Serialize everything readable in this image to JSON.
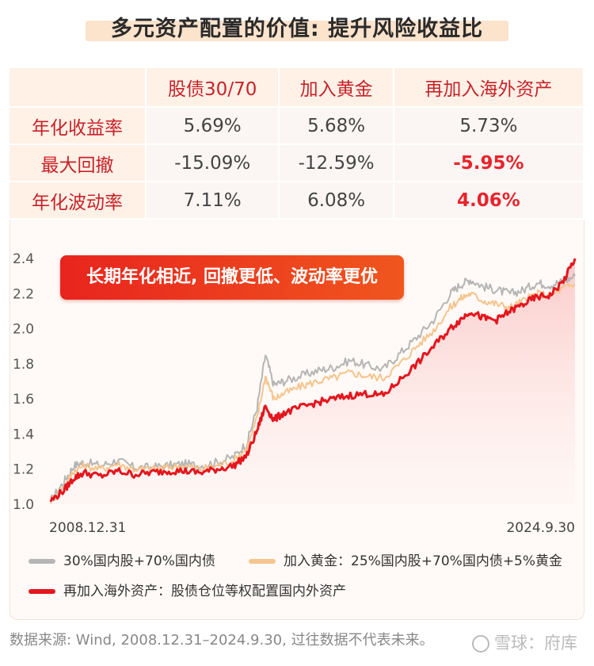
{
  "title": "多元资产配置的价值: 提升风险收益比",
  "table": {
    "headers": [
      "股债30/70",
      "加入黄金",
      "再加入海外资产"
    ],
    "rows": [
      {
        "label": "年化收益率",
        "values": [
          "5.69%",
          "5.68%",
          "5.73%"
        ]
      },
      {
        "label": "最大回撤",
        "values": [
          "-15.09%",
          "-12.59%",
          "-5.95%"
        ]
      },
      {
        "label": "年化波动率",
        "values": [
          "7.11%",
          "6.08%",
          "4.06%"
        ]
      }
    ]
  },
  "badge": "长期年化相近, 回撤更低、波动率更优",
  "legend": {
    "gray": "30%国内股+70%国内债",
    "orange": "加入黄金：25%国内股+70%国内债+5%黄金",
    "red": "再加入海外资产：股债仓位等权配置国内外资产"
  },
  "source": "数据来源: Wind, 2008.12.31–2024.9.30, 过往数据不代表未来。",
  "watermark": "雪球：府库",
  "colors": {
    "gray": "#b5b5b5",
    "orange": "#f6c48d",
    "red": "#e4161e"
  },
  "chart_data": {
    "type": "line",
    "x_labels": [
      "2008.12.31",
      "2024.9.30"
    ],
    "x": [
      2009.0,
      2009.4,
      2009.7,
      2010.0,
      2010.5,
      2011.0,
      2011.5,
      2012.0,
      2012.5,
      2013.0,
      2013.5,
      2014.0,
      2014.5,
      2014.9,
      2015.2,
      2015.45,
      2015.7,
      2016.0,
      2016.5,
      2017.0,
      2017.5,
      2018.0,
      2018.5,
      2019.0,
      2019.5,
      2020.0,
      2020.5,
      2021.0,
      2021.3,
      2021.6,
      2022.0,
      2022.4,
      2022.8,
      2023.2,
      2023.6,
      2024.0,
      2024.4,
      2024.75
    ],
    "ylim": [
      1.0,
      2.4
    ],
    "yticks": [
      1.0,
      1.2,
      1.4,
      1.6,
      1.8,
      2.0,
      2.2,
      2.4
    ],
    "series": [
      {
        "name": "30%国内股+70%国内债",
        "color": "gray",
        "values": [
          1.02,
          1.13,
          1.22,
          1.24,
          1.22,
          1.25,
          1.21,
          1.21,
          1.22,
          1.23,
          1.22,
          1.24,
          1.27,
          1.35,
          1.55,
          1.85,
          1.68,
          1.7,
          1.73,
          1.76,
          1.78,
          1.82,
          1.79,
          1.77,
          1.86,
          1.95,
          2.05,
          2.2,
          2.25,
          2.28,
          2.24,
          2.22,
          2.2,
          2.22,
          2.26,
          2.25,
          2.27,
          2.3
        ]
      },
      {
        "name": "加入黄金：25%国内股+70%国内债+5%黄金",
        "color": "orange",
        "values": [
          1.02,
          1.1,
          1.19,
          1.22,
          1.2,
          1.23,
          1.2,
          1.2,
          1.21,
          1.22,
          1.2,
          1.22,
          1.25,
          1.32,
          1.49,
          1.73,
          1.6,
          1.63,
          1.67,
          1.7,
          1.72,
          1.75,
          1.73,
          1.72,
          1.8,
          1.9,
          1.99,
          2.12,
          2.17,
          2.2,
          2.16,
          2.14,
          2.12,
          2.16,
          2.2,
          2.19,
          2.23,
          2.25
        ]
      },
      {
        "name": "再加入海外资产：股债仓位等权配置国内外资产",
        "color": "red",
        "values": [
          1.02,
          1.08,
          1.15,
          1.18,
          1.16,
          1.19,
          1.17,
          1.18,
          1.19,
          1.19,
          1.18,
          1.2,
          1.22,
          1.28,
          1.42,
          1.56,
          1.48,
          1.52,
          1.55,
          1.58,
          1.6,
          1.62,
          1.63,
          1.62,
          1.71,
          1.8,
          1.9,
          2.0,
          2.05,
          2.1,
          2.06,
          2.05,
          2.1,
          2.14,
          2.18,
          2.19,
          2.27,
          2.4
        ]
      }
    ]
  }
}
